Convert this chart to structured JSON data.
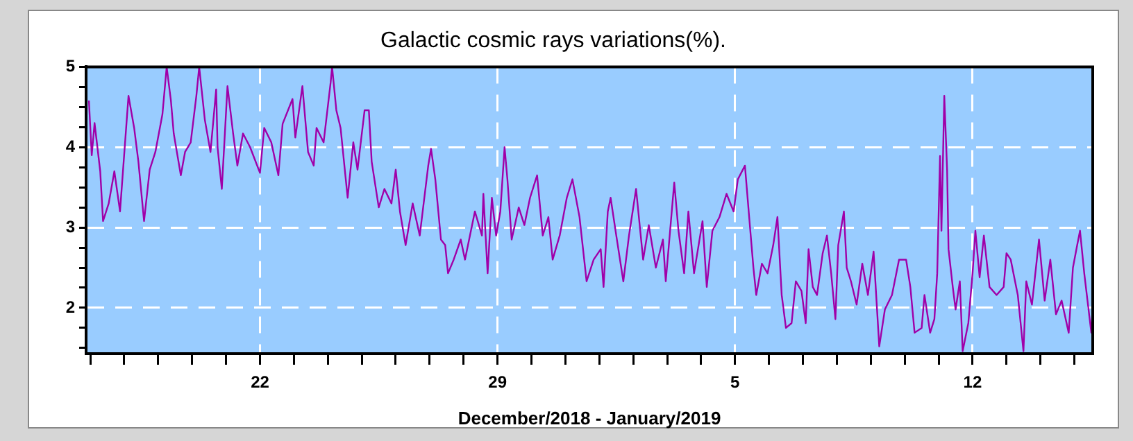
{
  "chart_data": {
    "type": "line",
    "title": "Galactic cosmic rays variations(%).",
    "xlabel": "December/2018 - January/2019",
    "xlim": [
      "2018-12-16T21:00",
      "2019-01-15T13:00"
    ],
    "xticks": [
      {
        "value": "2018-12-17",
        "label": null
      },
      {
        "value": "2018-12-18",
        "label": null
      },
      {
        "value": "2018-12-19",
        "label": null
      },
      {
        "value": "2018-12-20",
        "label": null
      },
      {
        "value": "2018-12-21",
        "label": null
      },
      {
        "value": "2018-12-22",
        "label": "22"
      },
      {
        "value": "2018-12-23",
        "label": null
      },
      {
        "value": "2018-12-24",
        "label": null
      },
      {
        "value": "2018-12-25",
        "label": null
      },
      {
        "value": "2018-12-26",
        "label": null
      },
      {
        "value": "2018-12-27",
        "label": null
      },
      {
        "value": "2018-12-28",
        "label": null
      },
      {
        "value": "2018-12-29",
        "label": "29"
      },
      {
        "value": "2018-12-30",
        "label": null
      },
      {
        "value": "2018-12-31",
        "label": null
      },
      {
        "value": "2019-01-01",
        "label": null
      },
      {
        "value": "2019-01-02",
        "label": null
      },
      {
        "value": "2019-01-03",
        "label": null
      },
      {
        "value": "2019-01-04",
        "label": null
      },
      {
        "value": "2019-01-05",
        "label": "5"
      },
      {
        "value": "2019-01-06",
        "label": null
      },
      {
        "value": "2019-01-07",
        "label": null
      },
      {
        "value": "2019-01-08",
        "label": null
      },
      {
        "value": "2019-01-09",
        "label": null
      },
      {
        "value": "2019-01-10",
        "label": null
      },
      {
        "value": "2019-01-11",
        "label": null
      },
      {
        "value": "2019-01-12",
        "label": "12"
      },
      {
        "value": "2019-01-13",
        "label": null
      },
      {
        "value": "2019-01-14",
        "label": null
      },
      {
        "value": "2019-01-15",
        "label": null
      }
    ],
    "ylim": [
      1.43,
      5
    ],
    "yticks": [
      {
        "value": 1.5,
        "label": null
      },
      {
        "value": 1.75,
        "label": null
      },
      2,
      {
        "value": 2.25,
        "label": null
      },
      {
        "value": 2.5,
        "label": null
      },
      {
        "value": 2.75,
        "label": null
      },
      3,
      {
        "value": 3.25,
        "label": null
      },
      {
        "value": 3.5,
        "label": null
      },
      {
        "value": 3.75,
        "label": null
      },
      4,
      {
        "value": 4.25,
        "label": null
      },
      {
        "value": 4.5,
        "label": null
      },
      {
        "value": 4.75,
        "label": null
      },
      5
    ],
    "grid": true,
    "series": [
      {
        "color": "#a000a8",
        "x": [
          "2018-12-16T23:00",
          "2018-12-17T01:00",
          "2018-12-17T03:00",
          "2018-12-17T07:00",
          "2018-12-17T09:00",
          "2018-12-17T13:00",
          "2018-12-17T17:00",
          "2018-12-17T21:00",
          "2018-12-18T03:00",
          "2018-12-18T07:00",
          "2018-12-18T10:00",
          "2018-12-18T14:00",
          "2018-12-18T18:00",
          "2018-12-18T22:00",
          "2018-12-19T03:00",
          "2018-12-19T06:00",
          "2018-12-19T09:00",
          "2018-12-19T11:00",
          "2018-12-19T16:00",
          "2018-12-19T19:00",
          "2018-12-19T23:00",
          "2018-12-20T03:00",
          "2018-12-20T05:00",
          "2018-12-20T09:00",
          "2018-12-20T13:00",
          "2018-12-20T17:00",
          "2018-12-20T18:00",
          "2018-12-20T21:00",
          "2018-12-21T01:00",
          "2018-12-21T05:00",
          "2018-12-21T08:00",
          "2018-12-21T12:00",
          "2018-12-21T17:00",
          "2018-12-22T00:00",
          "2018-12-22T03:00",
          "2018-12-22T08:00",
          "2018-12-22T13:00",
          "2018-12-22T16:00",
          "2018-12-22T23:00",
          "2018-12-23T01:00",
          "2018-12-23T06:00",
          "2018-12-23T10:00",
          "2018-12-23T14:00",
          "2018-12-23T16:00",
          "2018-12-23T21:00",
          "2018-12-24T02:00",
          "2018-12-24T03:00",
          "2018-12-24T06:00",
          "2018-12-24T09:00",
          "2018-12-24T14:00",
          "2018-12-24T18:00",
          "2018-12-24T21:00",
          "2018-12-25T02:00",
          "2018-12-25T05:00",
          "2018-12-25T07:00",
          "2018-12-25T12:00",
          "2018-12-25T16:00",
          "2018-12-25T21:00",
          "2018-12-26T00:00",
          "2018-12-26T03:00",
          "2018-12-26T07:00",
          "2018-12-26T12:00",
          "2018-12-26T17:00",
          "2018-12-26T23:00",
          "2018-12-27T01:00",
          "2018-12-27T04:00",
          "2018-12-27T08:00",
          "2018-12-27T11:00",
          "2018-12-27T13:00",
          "2018-12-27T17:00",
          "2018-12-27T22:00",
          "2018-12-28T01:00",
          "2018-12-28T08:00",
          "2018-12-28T13:00",
          "2018-12-28T14:00",
          "2018-12-28T17:00",
          "2018-12-28T20:00",
          "2018-12-28T23:00",
          "2018-12-29T02:00",
          "2018-12-29T05:00",
          "2018-12-29T07:00",
          "2018-12-29T10:00",
          "2018-12-29T15:00",
          "2018-12-29T19:00",
          "2018-12-29T23:00",
          "2018-12-30T04:00",
          "2018-12-30T08:00",
          "2018-12-30T12:00",
          "2018-12-30T15:00",
          "2018-12-30T20:00",
          "2018-12-31T01:00",
          "2018-12-31T05:00",
          "2018-12-31T10:00",
          "2018-12-31T15:00",
          "2018-12-31T20:00",
          "2019-01-01T01:00",
          "2019-01-01T03:00",
          "2019-01-01T06:00",
          "2019-01-01T08:00",
          "2019-01-01T12:00",
          "2019-01-01T17:00",
          "2019-01-01T21:00",
          "2019-01-02T02:00",
          "2019-01-02T07:00",
          "2019-01-02T11:00",
          "2019-01-02T16:00",
          "2019-01-02T21:00",
          "2019-01-02T23:00",
          "2019-01-03T05:00",
          "2019-01-03T08:00",
          "2019-01-03T12:00",
          "2019-01-03T15:00",
          "2019-01-03T19:00",
          "2019-01-04T01:00",
          "2019-01-04T04:00",
          "2019-01-04T08:00",
          "2019-01-04T13:00",
          "2019-01-04T18:00",
          "2019-01-04T23:00",
          "2019-01-05T02:00",
          "2019-01-05T07:00",
          "2019-01-05T10:00",
          "2019-01-05T13:00",
          "2019-01-05T15:00",
          "2019-01-05T19:00",
          "2019-01-05T23:00",
          "2019-01-06T03:00",
          "2019-01-06T06:00",
          "2019-01-06T09:00",
          "2019-01-06T12:00",
          "2019-01-06T16:00",
          "2019-01-06T19:00",
          "2019-01-06T23:00",
          "2019-01-07T02:00",
          "2019-01-07T04:00",
          "2019-01-07T07:00",
          "2019-01-07T10:00",
          "2019-01-07T14:00",
          "2019-01-07T17:00",
          "2019-01-07T20:00",
          "2019-01-07T23:00",
          "2019-01-08T01:00",
          "2019-01-08T05:00",
          "2019-01-08T07:00",
          "2019-01-08T10:00",
          "2019-01-08T14:00",
          "2019-01-08T18:00",
          "2019-01-08T22:00",
          "2019-01-09T02:00",
          "2019-01-09T06:00",
          "2019-01-09T10:00",
          "2019-01-09T15:00",
          "2019-01-09T20:00",
          "2019-01-10T01:00",
          "2019-01-10T04:00",
          "2019-01-10T07:00",
          "2019-01-10T12:00",
          "2019-01-10T14:00",
          "2019-01-10T18:00",
          "2019-01-10T21:00",
          "2019-01-10T23:00",
          "2019-01-11T01:00",
          "2019-01-11T02:00",
          "2019-01-11T04:00",
          "2019-01-11T06:00",
          "2019-01-11T07:00",
          "2019-01-11T10:00",
          "2019-01-11T12:00",
          "2019-01-11T15:00",
          "2019-01-11T17:00",
          "2019-01-11T21:00",
          "2019-01-12T00:00",
          "2019-01-12T02:00",
          "2019-01-12T05:00",
          "2019-01-12T08:00",
          "2019-01-12T12:00",
          "2019-01-12T17:00",
          "2019-01-12T22:00",
          "2019-01-13T00:00",
          "2019-01-13T03:00",
          "2019-01-13T08:00",
          "2019-01-13T12:00",
          "2019-01-13T14:00",
          "2019-01-13T18:00",
          "2019-01-13T23:00",
          "2019-01-14T03:00",
          "2019-01-14T07:00",
          "2019-01-14T11:00",
          "2019-01-14T15:00",
          "2019-01-14T20:00",
          "2019-01-14T23:00",
          "2019-01-15T02:00",
          "2019-01-15T04:00",
          "2019-01-15T07:00",
          "2019-01-15T12:00",
          "2019-01-15T13:00"
        ],
        "values": [
          4.58,
          3.9,
          4.3,
          3.7,
          3.08,
          3.3,
          3.7,
          3.2,
          4.64,
          4.24,
          3.82,
          3.08,
          3.72,
          3.94,
          4.41,
          5.0,
          4.58,
          4.17,
          3.65,
          3.94,
          4.06,
          4.64,
          5.0,
          4.34,
          3.94,
          4.72,
          4.0,
          3.48,
          4.76,
          4.17,
          3.77,
          4.17,
          4.0,
          3.68,
          4.24,
          4.06,
          3.65,
          4.29,
          4.6,
          4.12,
          4.76,
          3.94,
          3.77,
          4.24,
          4.06,
          4.81,
          5.0,
          4.46,
          4.24,
          3.37,
          4.06,
          3.72,
          4.46,
          4.46,
          3.82,
          3.25,
          3.48,
          3.3,
          3.72,
          3.2,
          2.78,
          3.3,
          2.9,
          3.77,
          3.98,
          3.6,
          2.85,
          2.78,
          2.43,
          2.6,
          2.85,
          2.6,
          3.2,
          2.9,
          3.42,
          2.43,
          3.37,
          2.9,
          3.2,
          4.0,
          3.6,
          2.85,
          3.25,
          3.03,
          3.37,
          3.65,
          2.9,
          3.13,
          2.6,
          2.9,
          3.37,
          3.6,
          3.13,
          2.33,
          2.6,
          2.73,
          2.26,
          3.2,
          3.37,
          2.9,
          2.33,
          2.9,
          3.48,
          2.6,
          3.03,
          2.5,
          2.85,
          2.33,
          3.56,
          2.96,
          2.43,
          3.2,
          2.43,
          3.08,
          2.26,
          2.96,
          3.13,
          3.42,
          3.2,
          3.6,
          3.77,
          3.13,
          2.5,
          2.16,
          2.55,
          2.43,
          2.78,
          3.13,
          2.16,
          1.75,
          1.81,
          2.33,
          2.21,
          1.81,
          2.73,
          2.26,
          2.16,
          2.68,
          2.9,
          2.43,
          1.86,
          2.78,
          3.2,
          2.5,
          2.33,
          2.04,
          2.55,
          2.16,
          2.7,
          1.52,
          1.98,
          2.16,
          2.6,
          2.6,
          2.26,
          1.69,
          1.75,
          2.16,
          1.69,
          1.86,
          2.43,
          3.89,
          2.96,
          4.64,
          3.72,
          2.73,
          2.26,
          1.98,
          2.33,
          1.46,
          1.81,
          2.43,
          2.96,
          2.38,
          2.9,
          2.26,
          2.16,
          2.26,
          2.68,
          2.6,
          2.16,
          1.46,
          2.33,
          2.04,
          2.85,
          2.09,
          2.6,
          1.92,
          2.09,
          1.69,
          2.5,
          2.78,
          2.96,
          2.43,
          1.69,
          2.04
        ]
      }
    ]
  }
}
